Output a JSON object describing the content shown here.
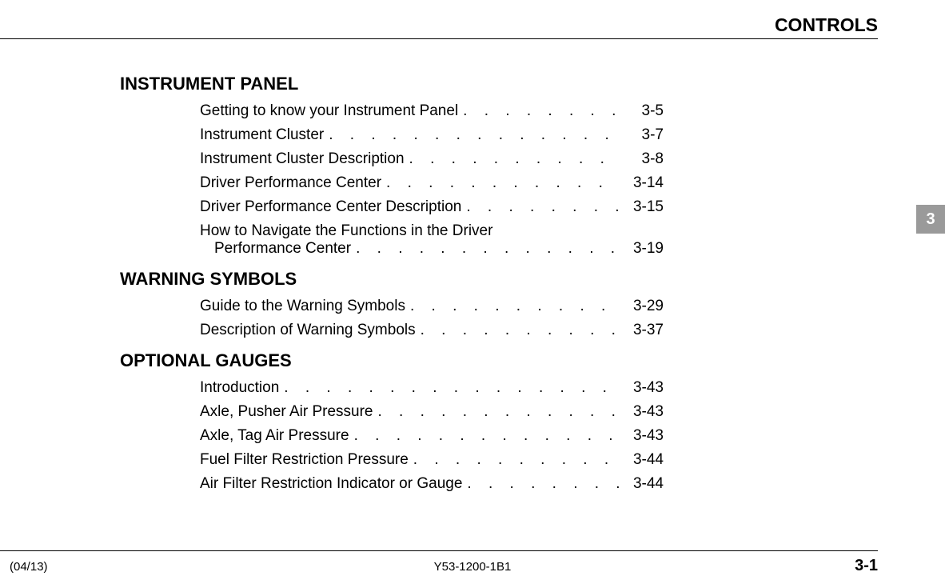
{
  "header": {
    "title": "CONTROLS"
  },
  "tab": {
    "number": "3"
  },
  "sections": [
    {
      "heading": "INSTRUMENT PANEL",
      "entries": [
        {
          "title": "Getting to know your Instrument Panel",
          "page": "3-5",
          "wrap": false
        },
        {
          "title": "Instrument Cluster",
          "page": "3-7",
          "wrap": false
        },
        {
          "title": "Instrument Cluster Description",
          "page": "3-8",
          "wrap": false
        },
        {
          "title": "Driver Performance Center",
          "page": "3-14",
          "wrap": false
        },
        {
          "title": "Driver Performance Center Description",
          "page": "3-15",
          "wrap": false
        },
        {
          "title_line1": "How to Navigate the Functions in the Driver",
          "title_line2": "Performance Center",
          "page": "3-19",
          "wrap": true
        }
      ]
    },
    {
      "heading": "WARNING SYMBOLS",
      "entries": [
        {
          "title": "Guide to the Warning Symbols",
          "page": "3-29",
          "wrap": false
        },
        {
          "title": "Description of Warning Symbols",
          "page": "3-37",
          "wrap": false
        }
      ]
    },
    {
      "heading": "OPTIONAL GAUGES",
      "entries": [
        {
          "title": "Introduction",
          "page": "3-43",
          "wrap": false
        },
        {
          "title": "Axle, Pusher Air Pressure",
          "page": "3-43",
          "wrap": false
        },
        {
          "title": "Axle, Tag Air Pressure",
          "page": "3-43",
          "wrap": false
        },
        {
          "title": "Fuel Filter Restriction Pressure",
          "page": "3-44",
          "wrap": false
        },
        {
          "title": "Air Filter Restriction Indicator or Gauge",
          "page": "3-44",
          "wrap": false
        }
      ]
    }
  ],
  "footer": {
    "left": "(04/13)",
    "center": "Y53-1200-1B1",
    "right": "3-1"
  },
  "colors": {
    "background": "#ffffff",
    "text": "#000000",
    "tab_bg": "#9a9a9a",
    "tab_text": "#ffffff"
  },
  "typography": {
    "header_fontsize": 23,
    "section_heading_fontsize": 22,
    "toc_fontsize": 19,
    "footer_fontsize": 15,
    "page_number_fontsize": 20,
    "font_family": "Arial"
  }
}
